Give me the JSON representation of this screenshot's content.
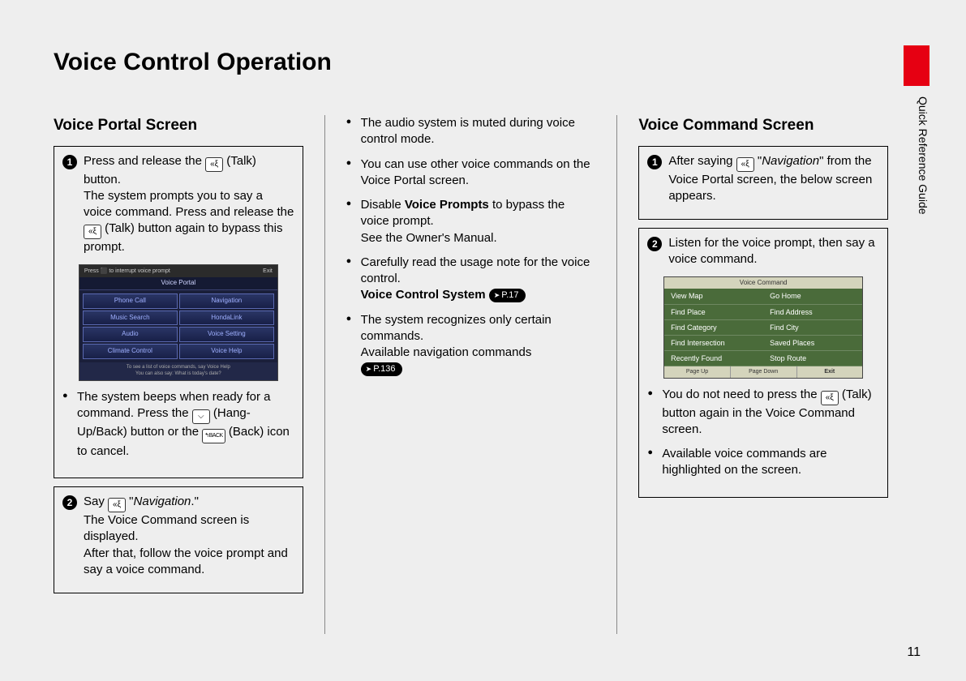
{
  "page": {
    "title": "Voice Control Operation",
    "side_label": "Quick Reference Guide",
    "number": "11",
    "colors": {
      "background": "#eeeeee",
      "accent": "#e60012",
      "text": "#000000",
      "screen_portal_bg": "#1a1f3a",
      "screen_command_bg": "#4a6b3a"
    }
  },
  "col1": {
    "heading": "Voice Portal Screen",
    "box1": {
      "step_num": "1",
      "line1a": "Press and release the ",
      "line1b": " (Talk) button.",
      "line2a": "The system prompts you to say a voice command. Press and release the ",
      "line2b": " (Talk) button again to bypass this prompt.",
      "portal": {
        "topbar_left": "Press ⬛ to interrupt voice prompt",
        "topbar_right": "Exit",
        "title": "Voice Portal",
        "cells": [
          "Phone Call",
          "Navigation",
          "Music Search",
          "HondaLink",
          "Audio",
          "Voice Setting",
          "Climate Control",
          "Voice Help"
        ],
        "foot1": "To see a list of voice commands, say Voice Help",
        "foot2": "You can also say: What is today's date?"
      },
      "bullet1a": "The system beeps when ready for a command. Press the ",
      "bullet1b": " (Hang-Up/Back) button or the ",
      "bullet1c": " (Back) icon to cancel."
    },
    "box2": {
      "step_num": "2",
      "line1a": "Say ",
      "line1b": " \"",
      "line1c": "Navigation",
      "line1d": ".\"",
      "line2": "The Voice Command screen is displayed.",
      "line3": "After that, follow the voice prompt and say a voice command."
    }
  },
  "col2": {
    "bullets": [
      {
        "text": "The audio system is muted during voice control mode."
      },
      {
        "text": "You can use other voice commands on the Voice Portal screen."
      },
      {
        "pre": "Disable ",
        "bold": "Voice Prompts",
        "post": " to bypass the voice prompt.",
        "sub": "See the Owner's Manual."
      },
      {
        "text": "Carefully read the usage note for the voice control.",
        "sub_bold": "Voice Control System ",
        "ref": "P.17"
      },
      {
        "text": "The system recognizes only certain commands.",
        "sub": "Available navigation commands",
        "ref": "P.136"
      }
    ]
  },
  "col3": {
    "heading": "Voice Command Screen",
    "box1": {
      "step_num": "1",
      "line1a": "After saying ",
      "line1b": " \"",
      "line1c": "Navigation",
      "line1d": "\" from the Voice Portal screen, the below screen appears."
    },
    "box2": {
      "step_num": "2",
      "line1": "Listen for the voice prompt, then say a voice command.",
      "command": {
        "title": "Voice Command",
        "cells": [
          "View Map",
          "Go Home",
          "Find Place",
          "Find Address",
          "Find Category",
          "Find City",
          "Find Intersection",
          "Saved Places",
          "Recently Found",
          "Stop Route"
        ],
        "foot": [
          "Page Up",
          "Page Down",
          "Exit"
        ]
      },
      "bullet1a": "You do not need to press the ",
      "bullet1b": " (Talk) button again in the Voice Command screen.",
      "bullet2": "Available voice commands are highlighted on the screen."
    }
  },
  "icons": {
    "talk": "«ξ",
    "hangup": "⌵",
    "back": "↰BACK"
  }
}
